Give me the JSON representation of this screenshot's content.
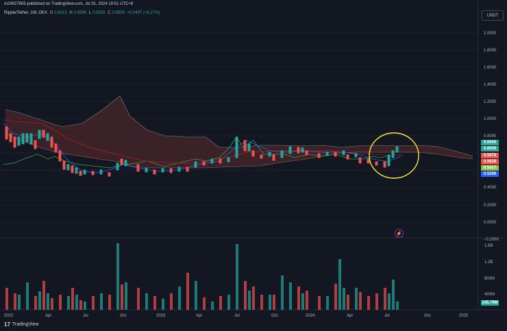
{
  "header": {
    "published_text": "m24927605 published on TradingView.com, Jul 31, 2024 19:51 UTC+8"
  },
  "legend": {
    "symbol": "Ripple/Tether, 1W, OKX",
    "open_label": "O",
    "open": "0.6013",
    "high_label": "H",
    "high": "0.6596",
    "low_label": "L",
    "low": "0.5920",
    "close_label": "C",
    "close": "0.6509",
    "change": "+0.0497 (+8.27%)"
  },
  "currency_button": "USDT",
  "price_axis": {
    "ticks": [
      "2.0000",
      "1.8000",
      "1.6000",
      "1.4000",
      "1.2000",
      "1.0000",
      "0.8000",
      "0.6000",
      "0.4000",
      "0.2000",
      "0.0000",
      "−0.2000"
    ],
    "tags": [
      {
        "text": "0.6509",
        "color": "#26a69a"
      },
      {
        "text": "0.6509",
        "color": "#26a69a"
      },
      {
        "text": "0.5878",
        "color": "#ef5350"
      },
      {
        "text": "0.5628",
        "color": "#ef5350"
      },
      {
        "text": "0.5417",
        "color": "#8bc34a"
      },
      {
        "text": "0.5206",
        "color": "#2962ff"
      }
    ]
  },
  "volume_axis": {
    "ticks": [
      "1.6B",
      "1.2B",
      "800M",
      "400M"
    ],
    "last_tag": "145.79M"
  },
  "time_axis": {
    "ticks": [
      "2022",
      "Apr",
      "Jul",
      "Oct",
      "2023",
      "Apr",
      "Jul",
      "Oct",
      "2024",
      "Apr",
      "Jul",
      "Oct",
      "2025"
    ]
  },
  "branding": {
    "name": "TradingView"
  },
  "colors": {
    "background": "#131722",
    "up": "#26a69a",
    "down": "#ef5350",
    "annotation": "#ffeb3b",
    "cloud": "#5d2a2e"
  }
}
